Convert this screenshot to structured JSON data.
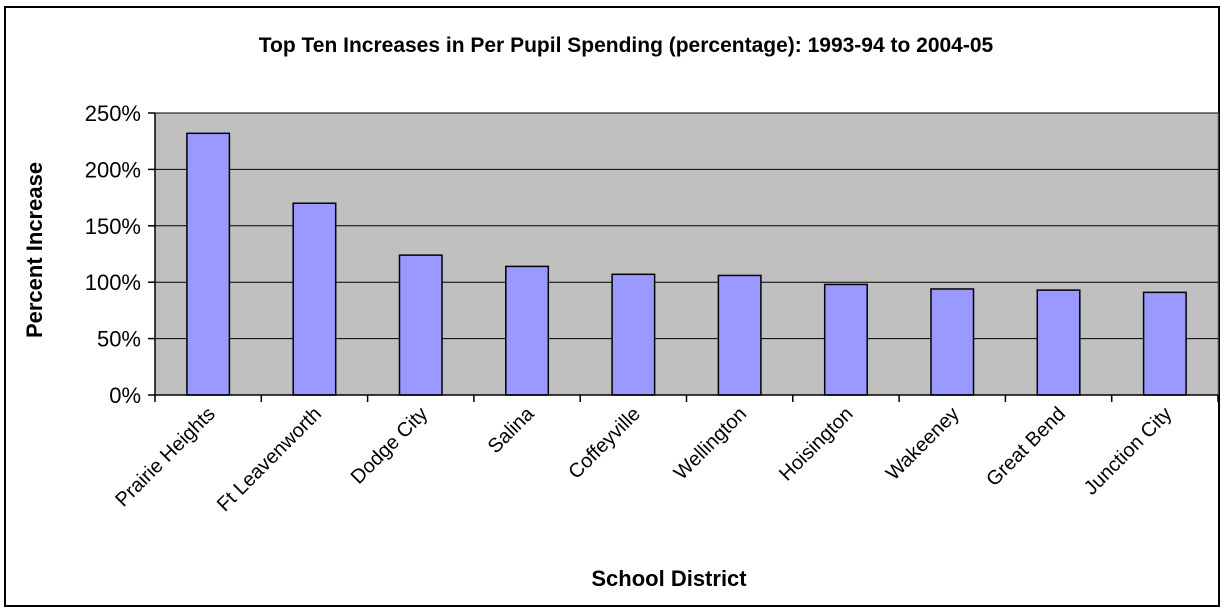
{
  "chart_data": {
    "type": "bar",
    "title": "Top Ten Increases in Per Pupil Spending (percentage):  1993-94 to 2004-05",
    "xlabel": "School District",
    "ylabel": "Percent Increase",
    "categories": [
      "Prairie Heights",
      "Ft Leavenworth",
      "Dodge City",
      "Salina",
      "Coffeyville",
      "Wellington",
      "Hoisington",
      "Wakeeney",
      "Great Bend",
      "Junction City"
    ],
    "values": [
      232,
      170,
      124,
      114,
      107,
      106,
      98,
      94,
      93,
      91
    ],
    "ylim": [
      0,
      250
    ],
    "yticks": [
      0,
      50,
      100,
      150,
      200,
      250
    ],
    "ytick_labels": [
      "0%",
      "50%",
      "100%",
      "150%",
      "200%",
      "250%"
    ],
    "grid": true,
    "legend": "none",
    "colors": {
      "bar_fill": "#9999ff",
      "bar_stroke": "#000000",
      "plot_background": "#c0c0c0",
      "gridline": "#000000"
    }
  }
}
